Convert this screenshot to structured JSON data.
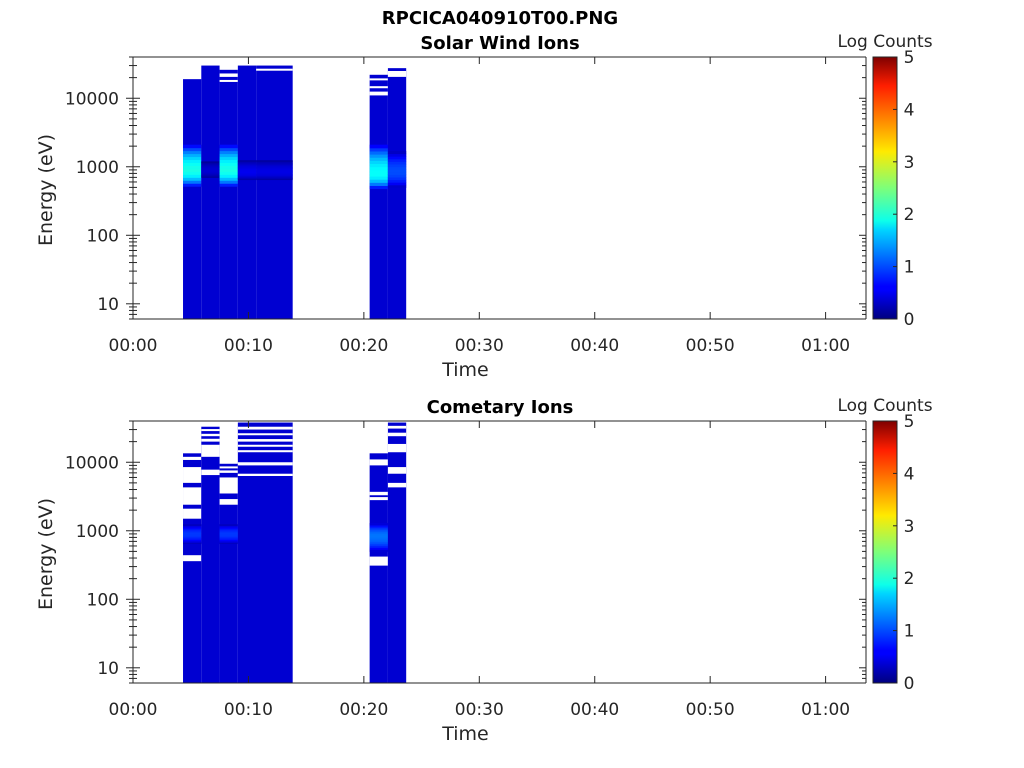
{
  "figure_title": "RPCICA040910T00.PNG",
  "chart_data": [
    {
      "type": "heatmap",
      "title": "Solar Wind Ions",
      "xlabel": "Time",
      "ylabel": "Energy (eV)",
      "y_scale": "log",
      "ylim": [
        6,
        40000
      ],
      "xlim_minutes": [
        0,
        63.5
      ],
      "x_ticks": [
        "00:00",
        "00:10",
        "00:20",
        "00:30",
        "00:40",
        "00:50",
        "01:00"
      ],
      "y_ticks": [
        "10",
        "100",
        "1000",
        "10000"
      ],
      "colorbar": {
        "label": "Log Counts",
        "range": [
          0,
          5
        ],
        "ticks": [
          "0",
          "1",
          "2",
          "3",
          "4",
          "5"
        ],
        "colormap": "jet"
      },
      "columns": [
        {
          "t_start": "00:04:20",
          "t_end": "00:05:55",
          "e_max": 19000,
          "gaps": [],
          "features": [
            {
              "e_low": 520,
              "e_high": 2100,
              "peak_at": 900,
              "level": 2.0
            }
          ]
        },
        {
          "t_start": "00:05:55",
          "t_end": "00:07:30",
          "e_max": 30000,
          "gaps": [],
          "features": [
            {
              "e_low": 700,
              "e_high": 1200,
              "peak_at": 900,
              "level": 0.4
            }
          ]
        },
        {
          "t_start": "00:07:30",
          "t_end": "00:09:05",
          "e_max": 26000,
          "gaps": [
            [
              20500,
              23000
            ],
            [
              17500,
              18500
            ]
          ],
          "features": [
            {
              "e_low": 520,
              "e_high": 2100,
              "peak_at": 900,
              "level": 2.0
            }
          ]
        },
        {
          "t_start": "00:09:05",
          "t_end": "00:10:40",
          "e_max": 30000,
          "gaps": [],
          "features": [
            {
              "e_low": 650,
              "e_high": 1250,
              "peak_at": 850,
              "level": 0.55
            }
          ]
        },
        {
          "t_start": "00:10:40",
          "t_end": "00:13:50",
          "e_max": 30000,
          "gaps": [
            [
              25500,
              27000
            ]
          ],
          "features": [
            {
              "e_low": 650,
              "e_high": 1250,
              "peak_at": 850,
              "level": 0.5
            }
          ]
        },
        {
          "t_start": "00:20:30",
          "t_end": "00:22:05",
          "e_max": 22000,
          "gaps": [
            [
              18500,
              19500
            ],
            [
              14000,
              15000
            ],
            [
              11000,
              12500
            ]
          ],
          "features": [
            {
              "e_low": 480,
              "e_high": 2100,
              "peak_at": 800,
              "level": 1.9
            }
          ]
        },
        {
          "t_start": "00:22:05",
          "t_end": "00:23:40",
          "e_max": 27500,
          "gaps": [
            [
              20500,
              25000
            ]
          ],
          "features": [
            {
              "e_low": 500,
              "e_high": 1700,
              "peak_at": 850,
              "level": 1.0
            }
          ]
        }
      ]
    },
    {
      "type": "heatmap",
      "title": "Cometary Ions",
      "xlabel": "Time",
      "ylabel": "Energy (eV)",
      "y_scale": "log",
      "ylim": [
        6,
        40000
      ],
      "xlim_minutes": [
        0,
        63.5
      ],
      "x_ticks": [
        "00:00",
        "00:10",
        "00:20",
        "00:30",
        "00:40",
        "00:50",
        "01:00"
      ],
      "y_ticks": [
        "10",
        "100",
        "1000",
        "10000"
      ],
      "colorbar": {
        "label": "Log Counts",
        "range": [
          0,
          5
        ],
        "ticks": [
          "0",
          "1",
          "2",
          "3",
          "4",
          "5"
        ],
        "colormap": "jet"
      },
      "columns": [
        {
          "t_start": "00:04:20",
          "t_end": "00:05:55",
          "e_max": 13500,
          "gaps": [
            [
              10800,
              12000
            ],
            [
              5000,
              8500
            ],
            [
              2400,
              4300
            ],
            [
              1500,
              2100
            ],
            [
              360,
              440
            ]
          ],
          "features": [
            {
              "e_low": 650,
              "e_high": 1250,
              "peak_at": 900,
              "level": 0.9
            }
          ]
        },
        {
          "t_start": "00:05:55",
          "t_end": "00:07:30",
          "e_max": 33000,
          "gaps": [
            [
              28500,
              30500
            ],
            [
              24000,
              26000
            ],
            [
              20000,
              22000
            ],
            [
              12000,
              18000
            ],
            [
              6500,
              7800
            ]
          ],
          "features": []
        },
        {
          "t_start": "00:07:30",
          "t_end": "00:09:05",
          "e_max": 9500,
          "gaps": [
            [
              8200,
              8700
            ],
            [
              7000,
              7600
            ],
            [
              3500,
              6000
            ],
            [
              2400,
              2900
            ]
          ],
          "features": [
            {
              "e_low": 650,
              "e_high": 1250,
              "peak_at": 900,
              "level": 0.9
            }
          ]
        },
        {
          "t_start": "00:09:05",
          "t_end": "00:13:50",
          "e_max": 38000,
          "gaps": [
            [
              30000,
              33000
            ],
            [
              25000,
              26500
            ],
            [
              20000,
              21800
            ],
            [
              17000,
              18000
            ],
            [
              14000,
              15000
            ],
            [
              9000,
              10000
            ],
            [
              6300,
              6800
            ]
          ],
          "features": []
        },
        {
          "t_start": "00:20:30",
          "t_end": "00:22:05",
          "e_max": 13500,
          "gaps": [
            [
              9000,
              11000
            ],
            [
              3300,
              3700
            ],
            [
              2800,
              3100
            ],
            [
              310,
              420
            ]
          ],
          "features": [
            {
              "e_low": 500,
              "e_high": 1300,
              "peak_at": 850,
              "level": 1.2
            }
          ]
        },
        {
          "t_start": "00:22:05",
          "t_end": "00:23:40",
          "e_max": 38000,
          "gaps": [
            [
              31000,
              34000
            ],
            [
              24000,
              27000
            ],
            [
              14000,
              18500
            ],
            [
              6800,
              8500
            ],
            [
              4300,
              5000
            ]
          ],
          "features": []
        }
      ]
    }
  ]
}
